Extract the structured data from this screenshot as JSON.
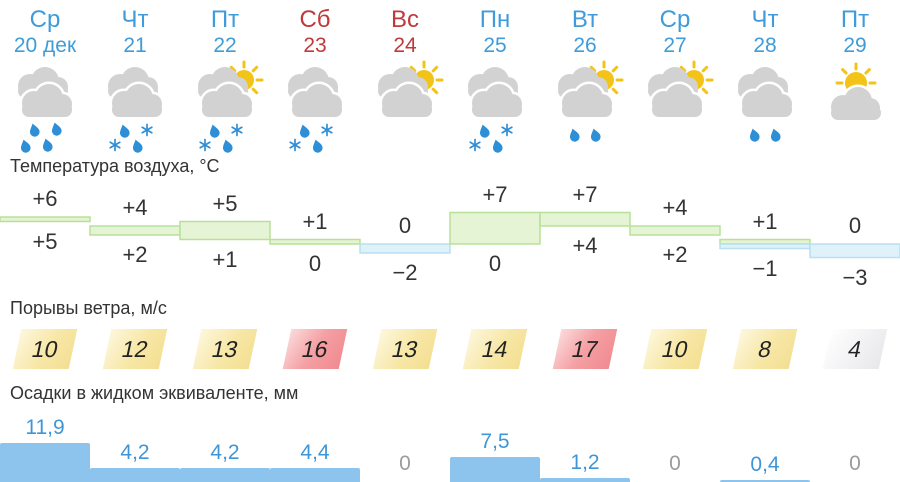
{
  "sections": {
    "temperature_title": "Температура воздуха, °C",
    "wind_title": "Порывы ветра, м/с",
    "precip_title": "Осадки в жидком эквиваленте, мм"
  },
  "columns": [
    {
      "day": "Ср",
      "date": "20 дек",
      "tone": "workday",
      "icon": "clouds-rain-heavy",
      "temp_max": "+6",
      "temp_min": "+5",
      "wind": "10",
      "wind_level": "yellow",
      "precip": "11,9"
    },
    {
      "day": "Чт",
      "date": "21",
      "tone": "workday",
      "icon": "clouds-rain-snow",
      "temp_max": "+4",
      "temp_min": "+2",
      "wind": "12",
      "wind_level": "yellow",
      "precip": "4,2"
    },
    {
      "day": "Пт",
      "date": "22",
      "tone": "workday",
      "icon": "sun-clouds-rain-snow",
      "temp_max": "+5",
      "temp_min": "+1",
      "wind": "13",
      "wind_level": "yellow",
      "precip": "4,2"
    },
    {
      "day": "Сб",
      "date": "23",
      "tone": "weekend",
      "icon": "clouds-rain-snow",
      "temp_max": "+1",
      "temp_min": "0",
      "wind": "16",
      "wind_level": "red",
      "precip": "4,4"
    },
    {
      "day": "Вс",
      "date": "24",
      "tone": "weekend",
      "icon": "sun-clouds",
      "temp_max": "0",
      "temp_min": "−2",
      "wind": "13",
      "wind_level": "yellow",
      "precip": "0"
    },
    {
      "day": "Пн",
      "date": "25",
      "tone": "workday",
      "icon": "clouds-rain-snow",
      "temp_max": "+7",
      "temp_min": "0",
      "wind": "14",
      "wind_level": "yellow",
      "precip": "7,5"
    },
    {
      "day": "Вт",
      "date": "26",
      "tone": "workday",
      "icon": "sun-clouds-rain",
      "temp_max": "+7",
      "temp_min": "+4",
      "wind": "17",
      "wind_level": "red",
      "precip": "1,2"
    },
    {
      "day": "Ср",
      "date": "27",
      "tone": "workday",
      "icon": "sun-clouds",
      "temp_max": "+4",
      "temp_min": "+2",
      "wind": "10",
      "wind_level": "yellow",
      "precip": "0"
    },
    {
      "day": "Чт",
      "date": "28",
      "tone": "workday",
      "icon": "clouds-rain",
      "temp_max": "+1",
      "temp_min": "−1",
      "wind": "8",
      "wind_level": "yellow",
      "precip": "0,4"
    },
    {
      "day": "Пт",
      "date": "29",
      "tone": "workday",
      "icon": "sun-cloud",
      "temp_max": "0",
      "temp_min": "−3",
      "wind": "4",
      "wind_level": "neutral",
      "precip": "0"
    }
  ],
  "chart_data": [
    {
      "type": "area",
      "name": "air-temperature",
      "title": "Температура воздуха, °C",
      "categories": [
        "Ср 20 дек",
        "Чт 21",
        "Пт 22",
        "Сб 23",
        "Вс 24",
        "Пн 25",
        "Вт 26",
        "Ср 27",
        "Чт 28",
        "Пт 29"
      ],
      "series": [
        {
          "name": "t_max",
          "values": [
            6,
            4,
            5,
            1,
            0,
            7,
            7,
            4,
            1,
            0
          ]
        },
        {
          "name": "t_min",
          "values": [
            5,
            2,
            1,
            0,
            -2,
            0,
            4,
            2,
            -1,
            -3
          ]
        }
      ],
      "ylim": [
        -3,
        7
      ],
      "units": "°C",
      "positive_fill": "#e5f4d5",
      "negative_fill": "#dff2fa"
    },
    {
      "type": "bar",
      "name": "wind-gusts",
      "title": "Порывы ветра, м/с",
      "categories": [
        "Ср 20 дек",
        "Чт 21",
        "Пт 22",
        "Сб 23",
        "Вс 24",
        "Пн 25",
        "Вт 26",
        "Ср 27",
        "Чт 28",
        "Пт 29"
      ],
      "values": [
        10,
        12,
        13,
        16,
        13,
        14,
        17,
        10,
        8,
        4
      ],
      "levels": [
        "yellow",
        "yellow",
        "yellow",
        "red",
        "yellow",
        "yellow",
        "red",
        "yellow",
        "yellow",
        "neutral"
      ],
      "units": "м/с"
    },
    {
      "type": "bar",
      "name": "precipitation-liquid-equivalent",
      "title": "Осадки в жидком эквиваленте, мм",
      "categories": [
        "Ср 20 дек",
        "Чт 21",
        "Пт 22",
        "Сб 23",
        "Вс 24",
        "Пн 25",
        "Вт 26",
        "Ср 27",
        "Чт 28",
        "Пт 29"
      ],
      "values": [
        11.9,
        4.2,
        4.2,
        4.4,
        0,
        7.5,
        1.2,
        0,
        0.4,
        0
      ],
      "units": "мм"
    }
  ],
  "colors": {
    "workday_text": "#3f9bd9",
    "weekend_text": "#c0393b",
    "title_text": "#333333",
    "temp_green_fill": "#e5f4d5",
    "temp_green_stroke": "#b9e099",
    "temp_blue_fill": "#dff2fa",
    "temp_blue_stroke": "#b8e0ef",
    "wind_yellow": "#f6e5a0",
    "wind_red": "#f2989d",
    "wind_neutral": "#ececee",
    "precip_bar": "#8cc4ed",
    "precip_text": "#3e96d8",
    "zero_text": "#9b9b9b",
    "cloud": "#d2d2d2",
    "sun": "#f3c318",
    "drop": "#2e8ed6"
  }
}
